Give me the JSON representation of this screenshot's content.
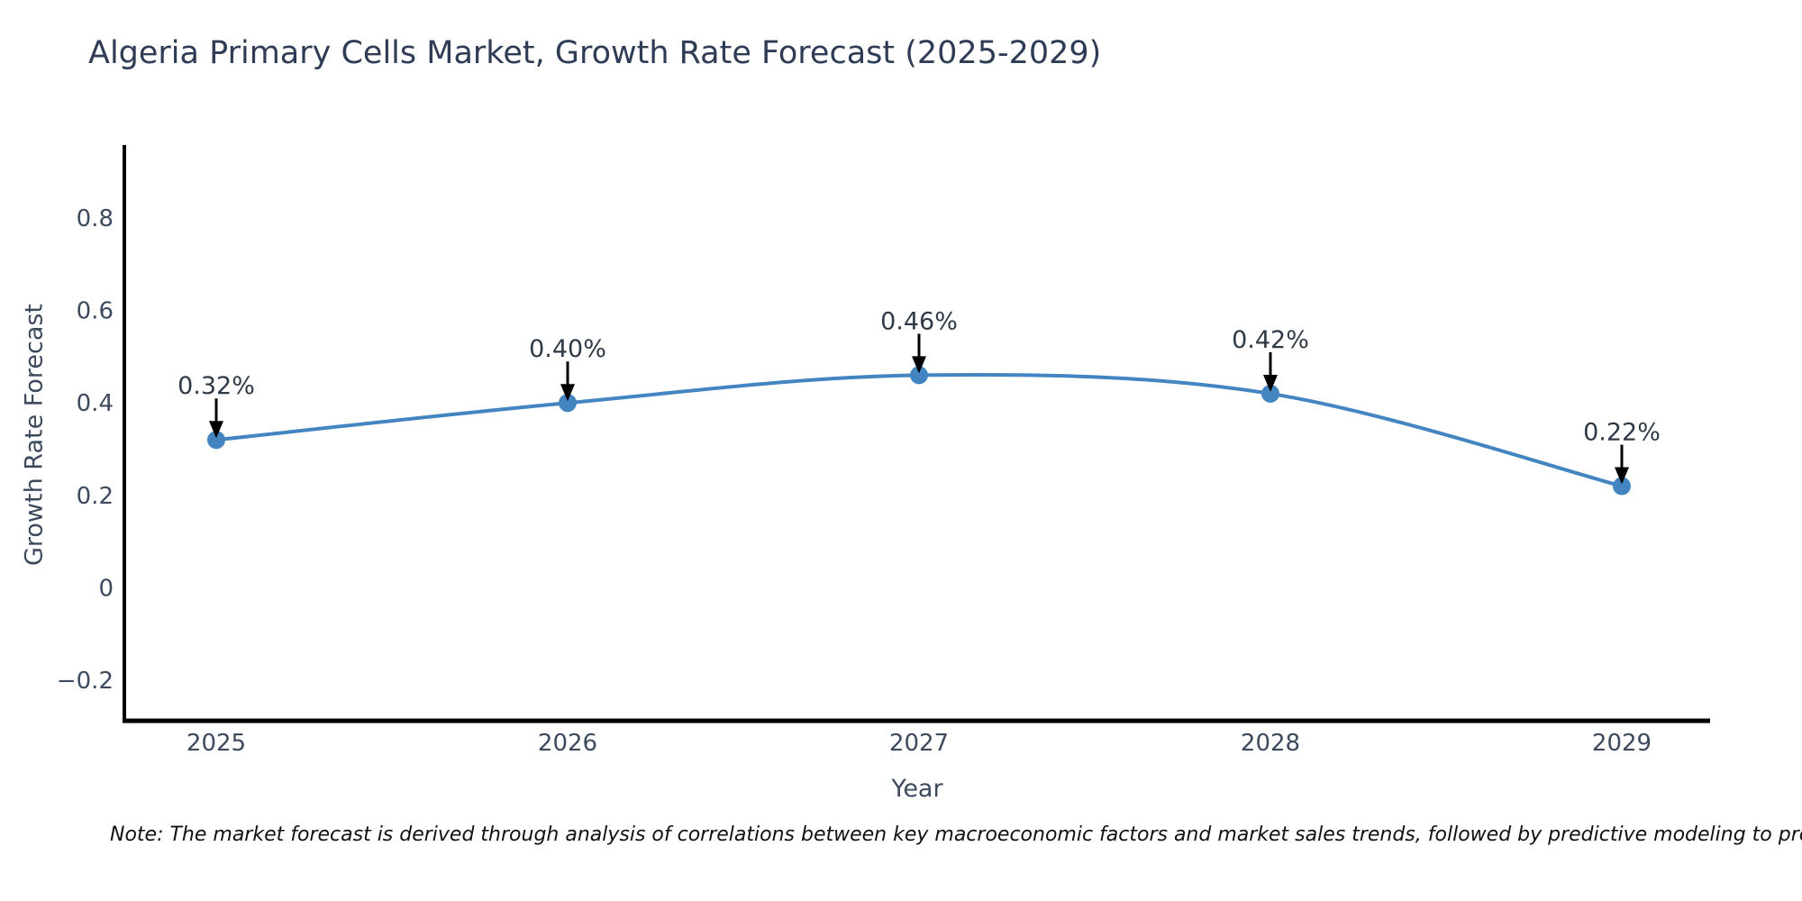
{
  "title": "Algeria Primary Cells Market, Growth Rate Forecast (2025-2029)",
  "note": "Note: The market forecast is derived through analysis of correlations between key macroeconomic factors and market sales trends, followed by predictive modeling to project future sales",
  "chart_data": {
    "type": "line",
    "title": "Algeria Primary Cells Market, Growth Rate Forecast (2025-2029)",
    "xlabel": "Year",
    "ylabel": "Growth Rate Forecast",
    "x": [
      2025,
      2026,
      2027,
      2028,
      2029
    ],
    "series": [
      {
        "name": "Growth Rate Forecast",
        "values": [
          0.32,
          0.4,
          0.46,
          0.42,
          0.22
        ],
        "point_labels": [
          "0.32%",
          "0.40%",
          "0.46%",
          "0.42%",
          "0.22%"
        ]
      }
    ],
    "xtick_labels": [
      "2025",
      "2026",
      "2027",
      "2028",
      "2029"
    ],
    "yticks": {
      "values": [
        0.8,
        0.6,
        0.4,
        0.2,
        0,
        -0.2
      ],
      "labels": [
        "0.8",
        "0.6",
        "0.4",
        "0.2",
        "0",
        "−0.2"
      ]
    },
    "ylim": [
      -0.29,
      0.96
    ],
    "grid": false,
    "legend": "none",
    "smooth": true,
    "line_color": "#4285c1",
    "marker_color": "#4285c1",
    "arrow_color": "#000000",
    "spine_color": "#000000"
  }
}
